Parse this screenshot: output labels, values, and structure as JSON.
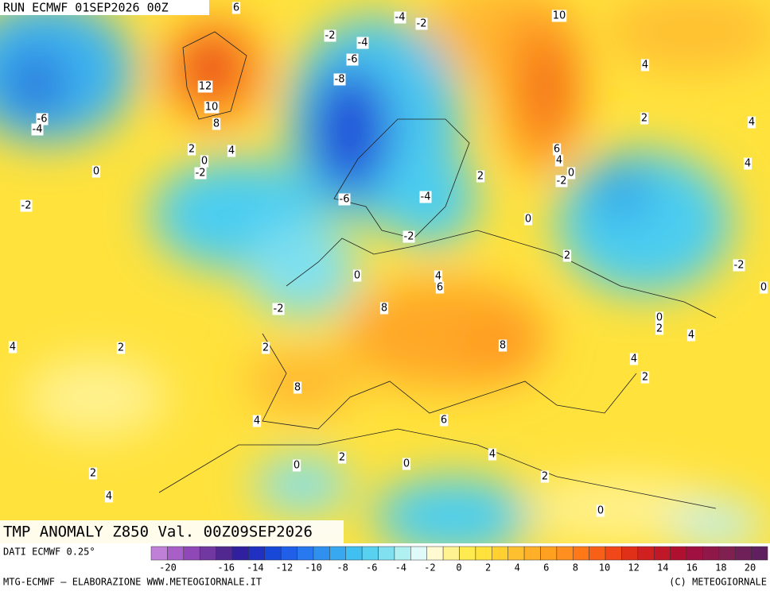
{
  "header": {
    "run": "RUN ECMWF 01SEP2026 00Z"
  },
  "title": "TMP ANOMALY Z850 Val. 00Z09SEP2026",
  "source": "DATI ECMWF 0.25°",
  "footer_left": "MTG-ECMWF – ELABORAZIONE WWW.METEOGIORNALE.IT",
  "footer_right": "(C) METEOGIORNALE",
  "colorbar": {
    "ticks": [
      -20,
      -16,
      -14,
      -12,
      -10,
      -8,
      -6,
      -4,
      -2,
      0,
      2,
      4,
      6,
      8,
      10,
      12,
      14,
      16,
      18,
      20
    ]
  },
  "contour_labels": [
    6,
    -4,
    -2,
    10,
    -2,
    -4,
    -6,
    -8,
    12,
    10,
    8,
    4,
    -6,
    -4,
    2,
    4,
    2,
    4,
    0,
    -2,
    6,
    4,
    0,
    -2,
    4,
    2,
    0,
    -4,
    -6,
    -2,
    0,
    -2,
    2,
    -2,
    0,
    4,
    6,
    0,
    8,
    -2,
    0,
    2,
    4,
    2,
    4,
    2,
    8,
    4,
    2,
    8,
    4,
    6,
    2,
    0,
    0,
    4,
    2,
    2,
    4,
    0
  ]
}
